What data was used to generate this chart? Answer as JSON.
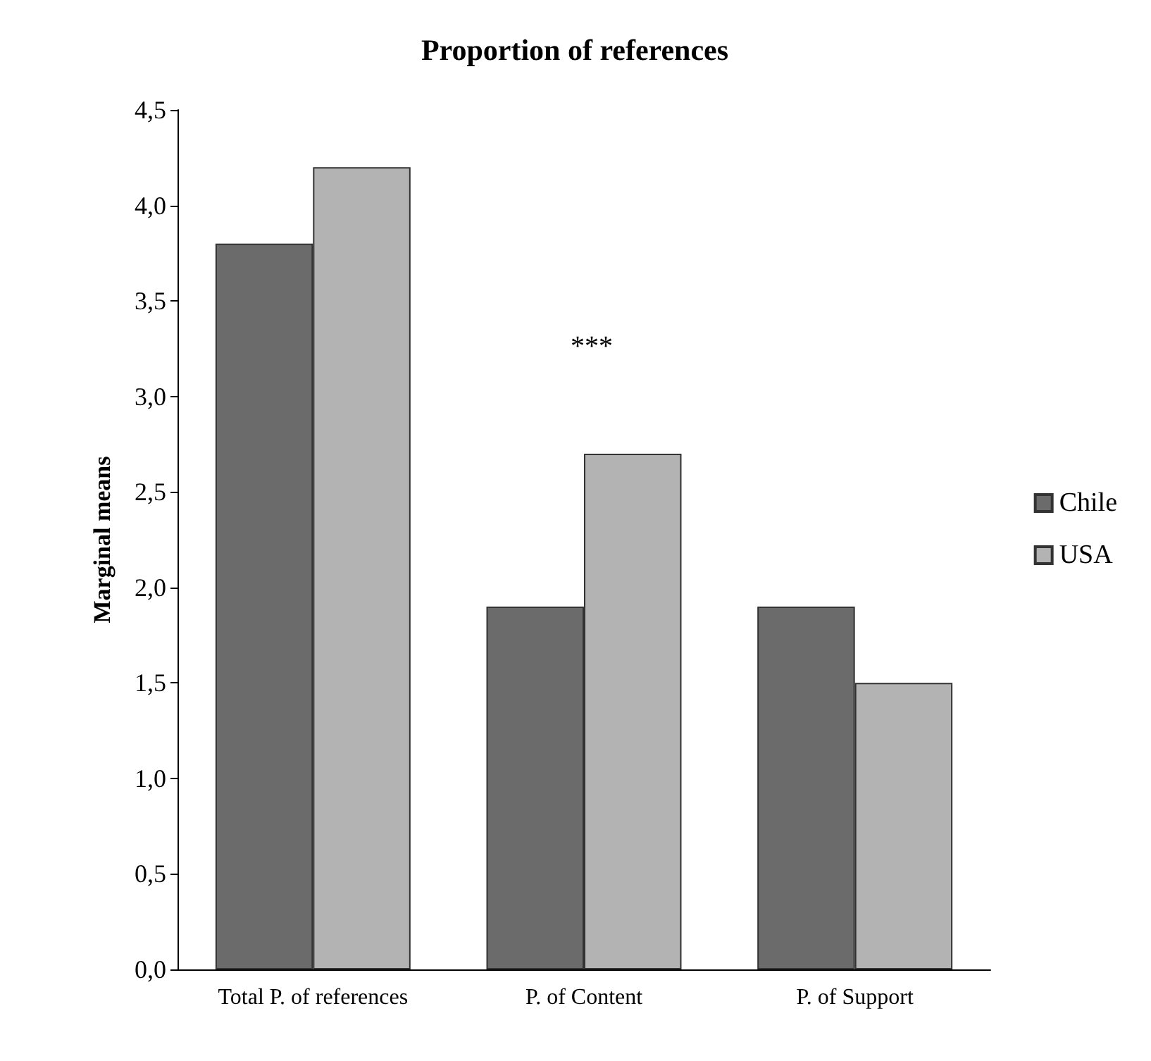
{
  "chart_data": {
    "type": "bar",
    "title": "Proportion of references",
    "ylabel": "Marginal means",
    "categories": [
      "Total P. of references",
      "P. of Content",
      "P. of Support"
    ],
    "series": [
      {
        "name": "Chile",
        "color": "#6b6b6b",
        "values": [
          3.8,
          1.9,
          1.9
        ]
      },
      {
        "name": "USA",
        "color": "#b3b3b3",
        "values": [
          4.2,
          2.7,
          1.5
        ]
      }
    ],
    "ylim": [
      0,
      4.5
    ],
    "yticks": [
      {
        "value": 0,
        "label": "0,0"
      },
      {
        "value": 0.5,
        "label": "0,5"
      },
      {
        "value": 1,
        "label": "1,0"
      },
      {
        "value": 1.5,
        "label": "1,5"
      },
      {
        "value": 2,
        "label": "2,0"
      },
      {
        "value": 2.5,
        "label": "2,5"
      },
      {
        "value": 3,
        "label": "3,0"
      },
      {
        "value": 3.5,
        "label": "3,5"
      },
      {
        "value": 4,
        "label": "4,0"
      },
      {
        "value": 4.5,
        "label": "4,5"
      }
    ],
    "annotations": [
      "***"
    ],
    "grid": false,
    "legend": "right"
  }
}
